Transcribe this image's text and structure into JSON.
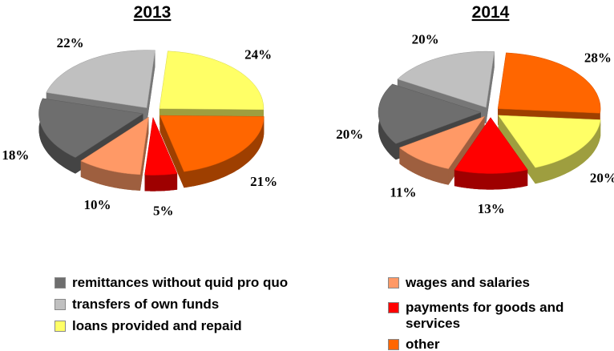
{
  "legend": [
    {
      "name": "remittances without quid pro quo",
      "color": "#6e6e6e"
    },
    {
      "name": "transfers of own funds",
      "color": "#c0c0c0"
    },
    {
      "name": "loans provided and repaid",
      "color": "#ffff66"
    },
    {
      "name": "wages and salaries",
      "color": "#ff9966"
    },
    {
      "name": "payments for goods and services",
      "color": "#ff0000"
    },
    {
      "name": "other",
      "color": "#ff6600"
    }
  ],
  "chart_data": [
    {
      "type": "pie",
      "title": "2013",
      "values": [
        18,
        22,
        24,
        10,
        5,
        21
      ],
      "value_labels": [
        "18%",
        "22%",
        "24%",
        "10%",
        "5%",
        "21%"
      ]
    },
    {
      "type": "pie",
      "title": "2014",
      "values": [
        20,
        20,
        20,
        11,
        13,
        28
      ],
      "value_labels": [
        "20%",
        "20%",
        "20%",
        "11%",
        "13%",
        "28%"
      ]
    }
  ]
}
